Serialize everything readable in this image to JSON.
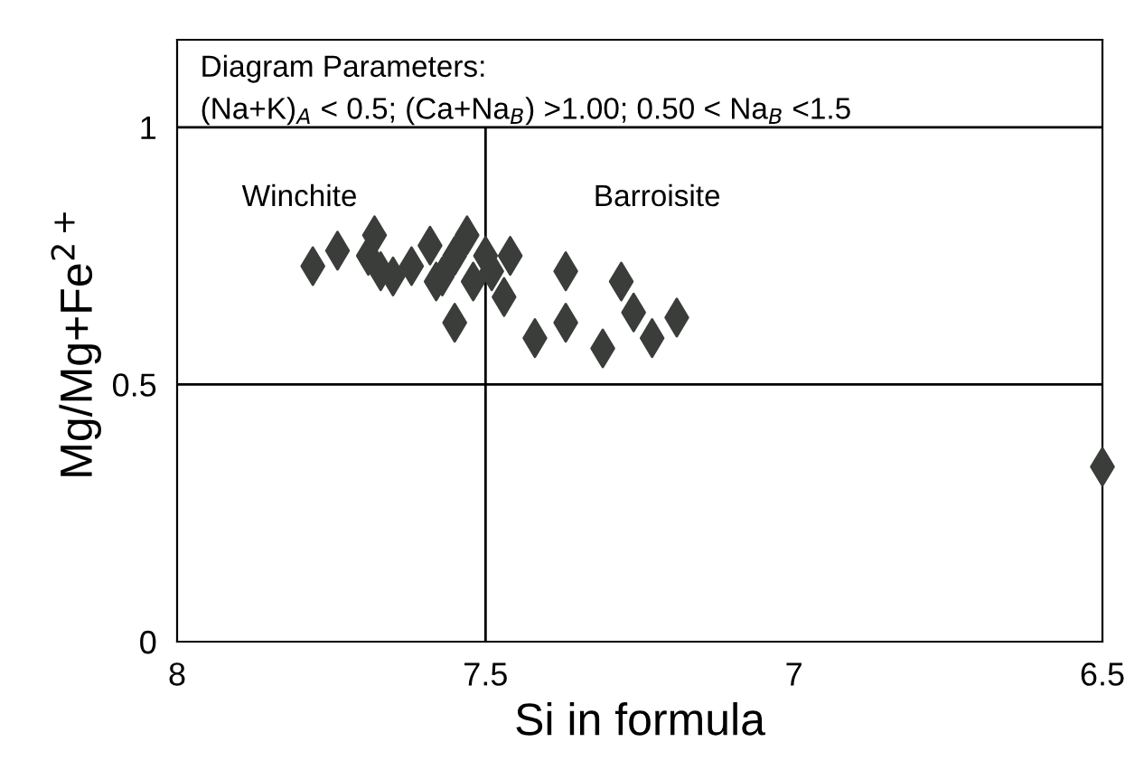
{
  "chart_data": {
    "type": "scatter",
    "xlabel": "Si in formula",
    "ylabel": "Mg/Mg+Fe$^{2+}$",
    "x": [
      7.78,
      7.74,
      7.68,
      7.69,
      7.65,
      7.62,
      7.59,
      7.58,
      7.55,
      7.53,
      7.55,
      7.52,
      7.5,
      7.49,
      7.47,
      7.46,
      7.42,
      7.37,
      7.37,
      7.31,
      7.28,
      7.26,
      7.23,
      7.19,
      7.67,
      7.57,
      6.5
    ],
    "values": [
      0.73,
      0.76,
      0.79,
      0.75,
      0.71,
      0.73,
      0.77,
      0.7,
      0.62,
      0.79,
      0.75,
      0.7,
      0.75,
      0.72,
      0.67,
      0.75,
      0.59,
      0.72,
      0.62,
      0.57,
      0.7,
      0.64,
      0.59,
      0.63,
      0.72,
      0.71,
      0.34
    ],
    "color": "#3a3d3a",
    "marker": "diamond",
    "xlim": [
      8,
      6.5
    ],
    "xticks": [
      8,
      7.5,
      7,
      6.5
    ],
    "ylim": [
      0,
      1.17
    ],
    "yticks": [
      0,
      0.5,
      1
    ],
    "grid": false,
    "ref_lines": [
      {
        "axis": "y",
        "value": 1,
        "color": "#000000"
      },
      {
        "axis": "y",
        "value": 0.5,
        "color": "#000000"
      },
      {
        "axis": "x",
        "value": 7.5,
        "color": "#000000"
      }
    ],
    "annotations": [
      "Diagram Parameters:",
      "(Na+K)$_{A}$ < 0.5; (Ca+Na$_{B}$) >1.00; 0.50 < Na$_{B}$ <1.5",
      "Winchite",
      "Barroisite"
    ]
  }
}
